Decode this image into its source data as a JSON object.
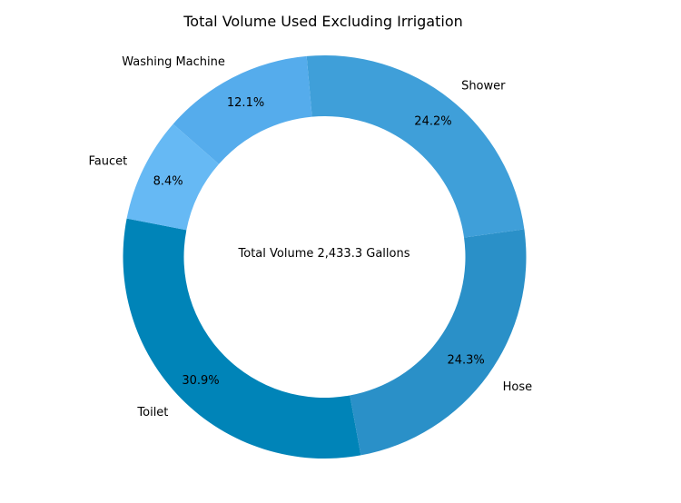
{
  "chart_data": {
    "type": "pie",
    "variant": "donut",
    "title": "Total Volume Used Excluding Irrigation",
    "center_text": "Total Volume 2,433.3 Gallons",
    "categories": [
      "Toilet",
      "Hose",
      "Shower",
      "Washing Machine",
      "Faucet"
    ],
    "values": [
      30.9,
      24.3,
      24.2,
      12.1,
      8.4
    ],
    "value_labels": [
      "30.9%",
      "24.3%",
      "24.2%",
      "12.1%",
      "8.4%"
    ],
    "colors": [
      "#0084b8",
      "#2a90c8",
      "#3f9fd9",
      "#55acec",
      "#66b9f4"
    ],
    "legend": "none"
  }
}
